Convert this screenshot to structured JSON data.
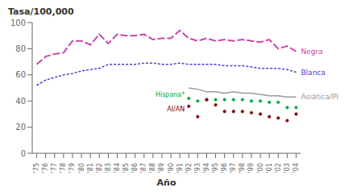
{
  "chart_data": {
    "type": "line",
    "xlabel": "Año",
    "ylabel": "Tasa/100,000",
    "x": [
      1975,
      1976,
      1977,
      1978,
      1979,
      1980,
      1981,
      1982,
      1983,
      1984,
      1985,
      1986,
      1987,
      1988,
      1989,
      1990,
      1991,
      1992,
      1993,
      1994,
      1995,
      1996,
      1997,
      1998,
      1999,
      2000,
      2001,
      2002,
      2003,
      2004
    ],
    "series": [
      {
        "name": "Negra",
        "color": "#cc44aa",
        "line_style": "dashed",
        "values": [
          68,
          74,
          76,
          77,
          86,
          86,
          83,
          91,
          84,
          91,
          90,
          90,
          91,
          87,
          88,
          88,
          94,
          88,
          86,
          88,
          86,
          87,
          86,
          87,
          86,
          85,
          87,
          80,
          82,
          78
        ]
      },
      {
        "name": "Blanca",
        "color": "#4444cc",
        "line_style": "dotted",
        "values": [
          52,
          56,
          58,
          60,
          61,
          63,
          64,
          65,
          68,
          68,
          68,
          68,
          69,
          69,
          68,
          68,
          69,
          68,
          68,
          68,
          68,
          67,
          67,
          67,
          66,
          65,
          65,
          65,
          64,
          62
        ]
      },
      {
        "name": "Asiática/PI",
        "color": "#999999",
        "line_style": "solid",
        "values": [
          null,
          null,
          null,
          null,
          null,
          null,
          null,
          null,
          null,
          null,
          null,
          null,
          null,
          null,
          null,
          null,
          null,
          50,
          49,
          47,
          47,
          46,
          47,
          46,
          46,
          45,
          44,
          44,
          43,
          43
        ]
      },
      {
        "name": "Hispana*",
        "color": "#00aa44",
        "line_style": "none",
        "marker": "dot",
        "values": [
          null,
          null,
          null,
          null,
          null,
          null,
          null,
          null,
          null,
          null,
          null,
          null,
          null,
          null,
          null,
          null,
          null,
          42,
          40,
          41,
          41,
          41,
          41,
          41,
          40,
          40,
          39,
          39,
          35,
          35
        ]
      },
      {
        "name": "AI/AN",
        "color": "#880000",
        "line_style": "none",
        "marker": "dot",
        "values": [
          null,
          null,
          null,
          null,
          null,
          null,
          null,
          null,
          null,
          null,
          null,
          null,
          null,
          null,
          null,
          null,
          null,
          36,
          28,
          41,
          37,
          32,
          32,
          32,
          31,
          30,
          28,
          27,
          25,
          30
        ]
      }
    ],
    "xlim": [
      1974.5,
      2004.5
    ],
    "xticks": [
      {
        "value": 1975,
        "label": "'75"
      },
      {
        "value": 1976,
        "label": "'76"
      },
      {
        "value": 1977,
        "label": "'77"
      },
      {
        "value": 1978,
        "label": "'78"
      },
      {
        "value": 1979,
        "label": "'79"
      },
      {
        "value": 1980,
        "label": "'80"
      },
      {
        "value": 1981,
        "label": "'81"
      },
      {
        "value": 1982,
        "label": "'82"
      },
      {
        "value": 1983,
        "label": "'83"
      },
      {
        "value": 1984,
        "label": "'84"
      },
      {
        "value": 1985,
        "label": "'85"
      },
      {
        "value": 1986,
        "label": "'86"
      },
      {
        "value": 1987,
        "label": "'87"
      },
      {
        "value": 1988,
        "label": "'88"
      },
      {
        "value": 1989,
        "label": "'89"
      },
      {
        "value": 1990,
        "label": "'90"
      },
      {
        "value": 1991,
        "label": "'91"
      },
      {
        "value": 1992,
        "label": "'92"
      },
      {
        "value": 1993,
        "label": "'93"
      },
      {
        "value": 1994,
        "label": "'94"
      },
      {
        "value": 1995,
        "label": "'95"
      },
      {
        "value": 1996,
        "label": "'96"
      },
      {
        "value": 1997,
        "label": "'97"
      },
      {
        "value": 1998,
        "label": "'98"
      },
      {
        "value": 1999,
        "label": "'99"
      },
      {
        "value": 2000,
        "label": "'00"
      },
      {
        "value": 2001,
        "label": "'01"
      },
      {
        "value": 2002,
        "label": "'02"
      },
      {
        "value": 2003,
        "label": "'03"
      },
      {
        "value": 2004,
        "label": "'04"
      }
    ],
    "ylim": [
      0,
      100
    ],
    "yticks": [
      0,
      20,
      40,
      60,
      80,
      100
    ],
    "grid": false
  }
}
